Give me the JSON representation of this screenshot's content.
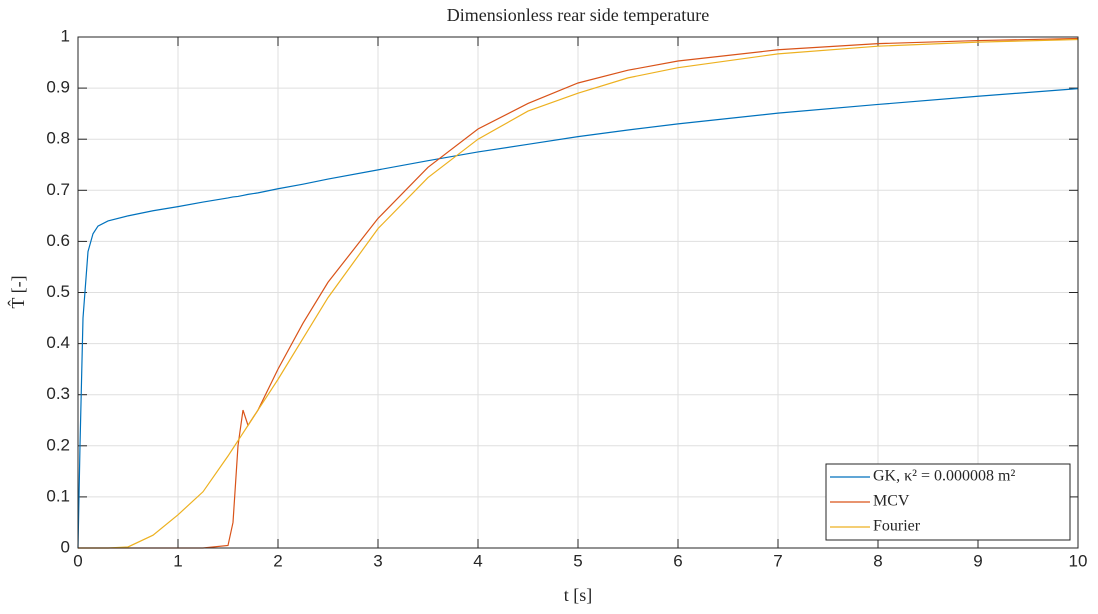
{
  "chart_data": {
    "type": "line",
    "title": "Dimensionless rear side temperature",
    "xlabel": "t [s]",
    "ylabel": "T̂ [-]",
    "x": [
      0,
      0.02,
      0.05,
      0.1,
      0.15,
      0.2,
      0.3,
      0.5,
      0.75,
      1,
      1.25,
      1.5,
      1.55,
      1.6,
      1.65,
      1.7,
      1.8,
      2,
      2.25,
      2.5,
      3,
      3.5,
      4,
      4.5,
      5,
      5.5,
      6,
      7,
      8,
      9,
      10
    ],
    "series": [
      {
        "name": "GK, κ² = 0.000008 m²",
        "color": "#0072bd",
        "values": [
          0,
          0.2,
          0.45,
          0.58,
          0.615,
          0.63,
          0.64,
          0.65,
          0.66,
          0.668,
          0.677,
          0.685,
          0.687,
          0.688,
          0.69,
          0.692,
          0.695,
          0.703,
          0.712,
          0.722,
          0.74,
          0.758,
          0.775,
          0.79,
          0.805,
          0.818,
          0.83,
          0.851,
          0.868,
          0.884,
          0.899
        ]
      },
      {
        "name": "MCV",
        "color": "#d95319",
        "values": [
          0,
          0,
          0,
          0,
          0,
          0,
          0,
          0,
          0,
          0,
          0,
          0.005,
          0.05,
          0.2,
          0.27,
          0.24,
          0.27,
          0.35,
          0.44,
          0.52,
          0.645,
          0.745,
          0.82,
          0.87,
          0.91,
          0.935,
          0.953,
          0.975,
          0.987,
          0.993,
          0.997
        ]
      },
      {
        "name": "Fourier",
        "color": "#edb120",
        "values": [
          0,
          0,
          0,
          0,
          0,
          0,
          0,
          0.002,
          0.025,
          0.065,
          0.11,
          0.18,
          0.195,
          0.21,
          0.225,
          0.24,
          0.27,
          0.33,
          0.41,
          0.49,
          0.625,
          0.725,
          0.8,
          0.855,
          0.89,
          0.92,
          0.94,
          0.967,
          0.982,
          0.99,
          0.995
        ]
      }
    ],
    "xlim": [
      0,
      10
    ],
    "ylim": [
      0,
      1
    ],
    "xticks": [
      0,
      1,
      2,
      3,
      4,
      5,
      6,
      7,
      8,
      9,
      10
    ],
    "yticks": [
      0,
      0.1,
      0.2,
      0.3,
      0.4,
      0.5,
      0.6,
      0.7,
      0.8,
      0.9,
      1
    ],
    "grid": true,
    "legend": "lower-right"
  }
}
